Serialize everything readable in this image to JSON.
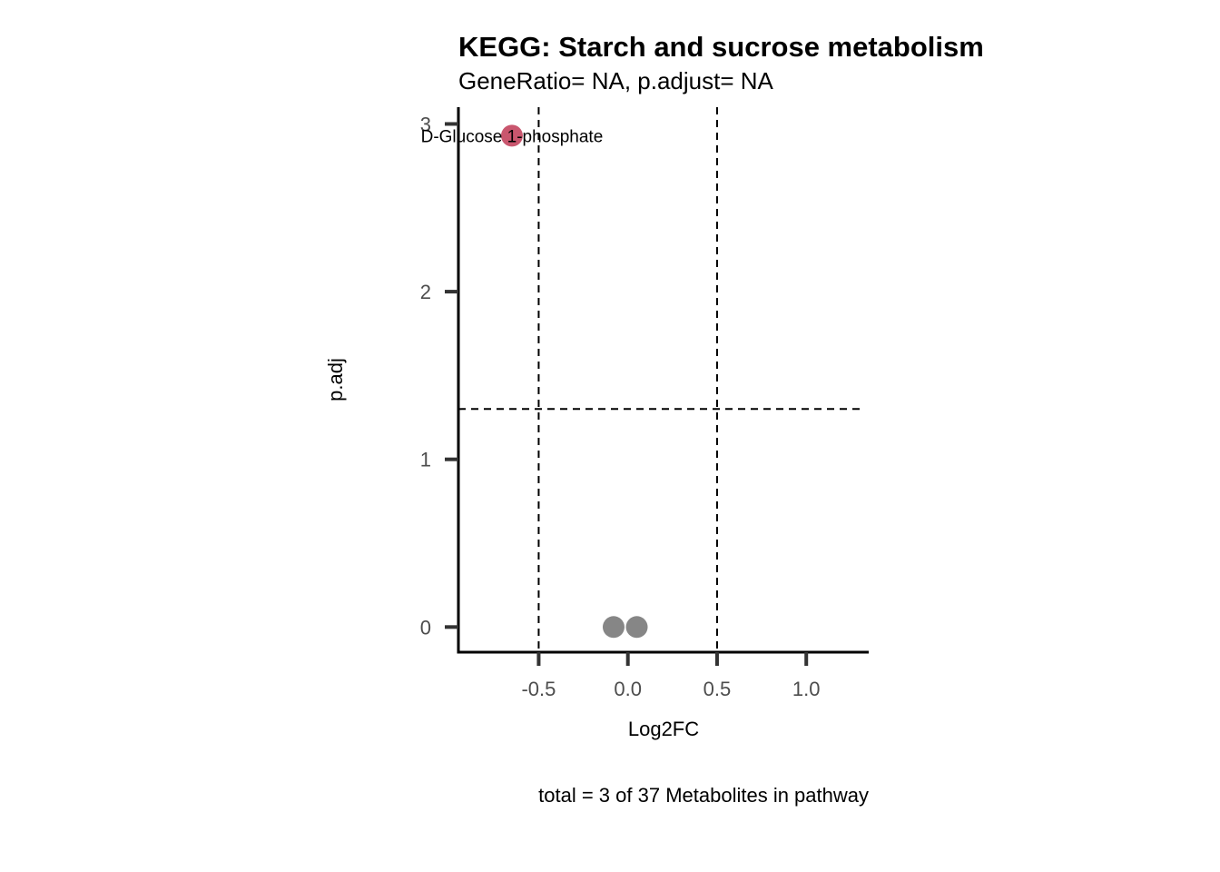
{
  "chart_data": {
    "type": "scatter",
    "title": "KEGG: Starch and sucrose metabolism",
    "subtitle": "GeneRatio= NA, p.adjust= NA",
    "xlabel": "Log2FC",
    "ylabel": "p.adj",
    "caption": "total = 3 of 37 Metabolites in pathway",
    "xlim": [
      -0.95,
      1.35
    ],
    "ylim": [
      -0.15,
      3.1
    ],
    "x_ticks": [
      -0.5,
      0.0,
      0.5,
      1.0
    ],
    "x_tick_labels": [
      "-0.5",
      "0.0",
      "0.5",
      "1.0"
    ],
    "y_ticks": [
      0,
      1,
      2,
      3
    ],
    "y_tick_labels": [
      "0",
      "1",
      "2",
      "3"
    ],
    "thresholds": {
      "log2fc": [
        -0.5,
        0.5
      ],
      "p_adj": 1.3
    },
    "colors": {
      "significant": "#c9566e",
      "not_significant": "#868686"
    },
    "points": [
      {
        "x": -0.65,
        "y": 2.93,
        "label": "D-Glucose 1-phosphate",
        "significant": true
      },
      {
        "x": -0.08,
        "y": 0.0,
        "label": "",
        "significant": false
      },
      {
        "x": 0.05,
        "y": 0.0,
        "label": "",
        "significant": false
      }
    ]
  }
}
